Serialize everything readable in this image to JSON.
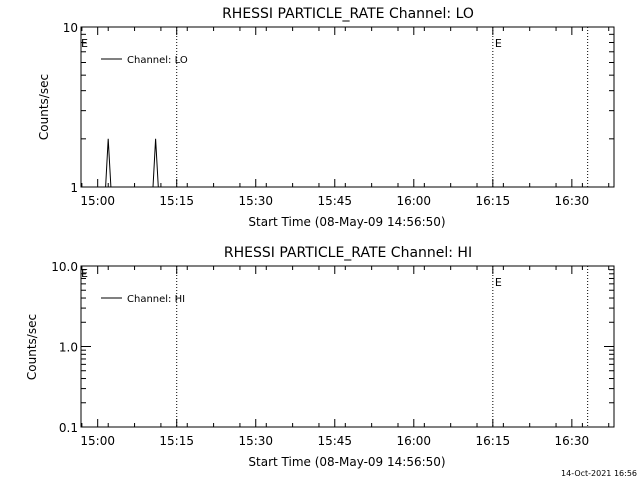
{
  "footer": {
    "timestamp": "14-Oct-2021 16:56"
  },
  "chart_data": [
    {
      "type": "line",
      "title": "RHESSI PARTICLE_RATE Channel: LO",
      "xlabel": "Start Time (08-May-09 14:56:50)",
      "ylabel": "Counts/sec",
      "yscale": "log",
      "ylim": [
        1,
        10
      ],
      "yticks": [
        "1",
        "10"
      ],
      "xlim": [
        "14:56:50",
        "16:38:00"
      ],
      "xticks": [
        "15:00",
        "15:15",
        "15:30",
        "15:45",
        "16:00",
        "16:15",
        "16:30"
      ],
      "grid": false,
      "legend_position": "top-left",
      "series": [
        {
          "name": "Channel: LO",
          "x": [
            "15:00:00",
            "15:01:30",
            "15:02:00",
            "15:02:30",
            "15:03:00",
            "15:10:00",
            "15:10:30",
            "15:11:00",
            "15:11:30",
            "15:14:00"
          ],
          "values": [
            1,
            1,
            2,
            1,
            1,
            1,
            1,
            2,
            1,
            1
          ]
        }
      ],
      "event_lines": [
        {
          "time": "15:15:00",
          "label": ""
        },
        {
          "time": "16:15:00",
          "label": "E"
        },
        {
          "time": "16:33:00",
          "label": ""
        }
      ],
      "start_marker": "E"
    },
    {
      "type": "line",
      "title": "RHESSI PARTICLE_RATE Channel: HI",
      "xlabel": "Start Time (08-May-09 14:56:50)",
      "ylabel": "Counts/sec",
      "yscale": "log",
      "ylim": [
        0.1,
        10
      ],
      "yticks": [
        "0.1",
        "1.0",
        "10.0"
      ],
      "xlim": [
        "14:56:50",
        "16:38:00"
      ],
      "xticks": [
        "15:00",
        "15:15",
        "15:30",
        "15:45",
        "16:00",
        "16:15",
        "16:30"
      ],
      "grid": false,
      "legend_position": "top-left",
      "series": [
        {
          "name": "Channel: HI",
          "x": [],
          "values": []
        }
      ],
      "event_lines": [
        {
          "time": "15:15:00",
          "label": ""
        },
        {
          "time": "16:15:00",
          "label": "E"
        },
        {
          "time": "16:33:00",
          "label": ""
        }
      ],
      "start_marker": "E"
    }
  ]
}
